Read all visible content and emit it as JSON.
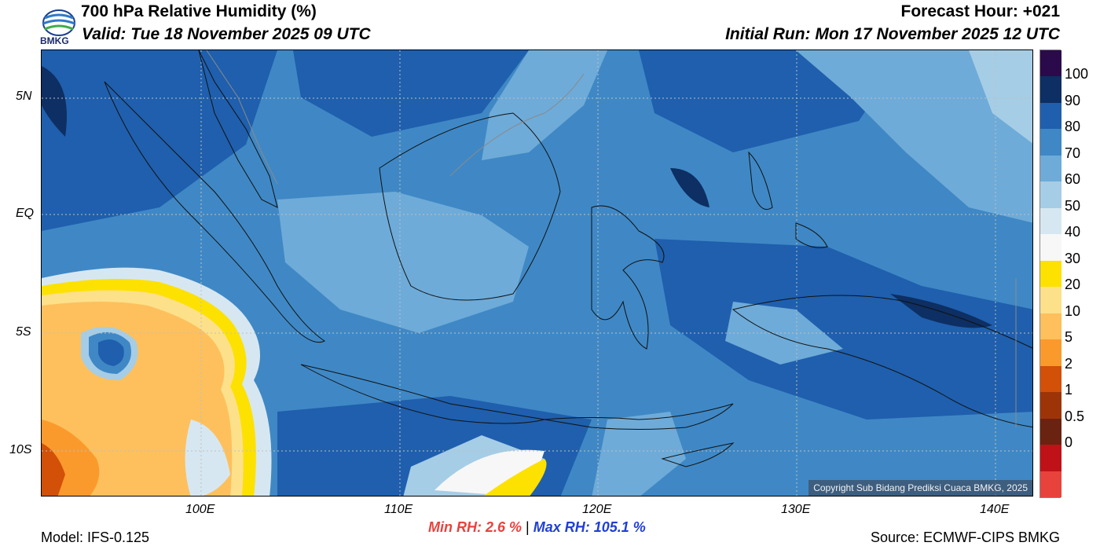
{
  "header": {
    "title": "700 hPa Relative Humidity (%)",
    "valid": "Valid: Tue 18 November 2025 09 UTC",
    "forecast_hour": "Forecast Hour: +021",
    "initial_run": "Initial Run: Mon 17 November 2025 12 UTC",
    "logo_text": "BMKG"
  },
  "axes": {
    "lat_labels": [
      "5N",
      "EQ",
      "5S",
      "10S"
    ],
    "lon_labels": [
      "100E",
      "110E",
      "120E",
      "130E",
      "140E"
    ]
  },
  "colorbar": {
    "labels": [
      "100",
      "90",
      "80",
      "70",
      "60",
      "50",
      "40",
      "30",
      "20",
      "10",
      "5",
      "2",
      "1",
      "0.5",
      "0"
    ],
    "colors": [
      "#2a0a4a",
      "#0d2f63",
      "#1f5fad",
      "#3f88c5",
      "#6eabd8",
      "#a6cde6",
      "#d7e7f1",
      "#f7f7f7",
      "#fde100",
      "#fde08a",
      "#fdc05c",
      "#fb9a2c",
      "#d25008",
      "#9d3408",
      "#6a2310",
      "#bf1218",
      "#e8423d"
    ]
  },
  "stats": {
    "min_rh": "Min RH:   2.6 %",
    "separator": "|",
    "max_rh": "Max RH: 105.1 %"
  },
  "footer": {
    "model": "Model: IFS-0.125",
    "source": "Source: ECMWF-CIPS BMKG",
    "copyright": "Copyright Sub Bidang Prediksi Cuaca BMKG, 2025"
  }
}
